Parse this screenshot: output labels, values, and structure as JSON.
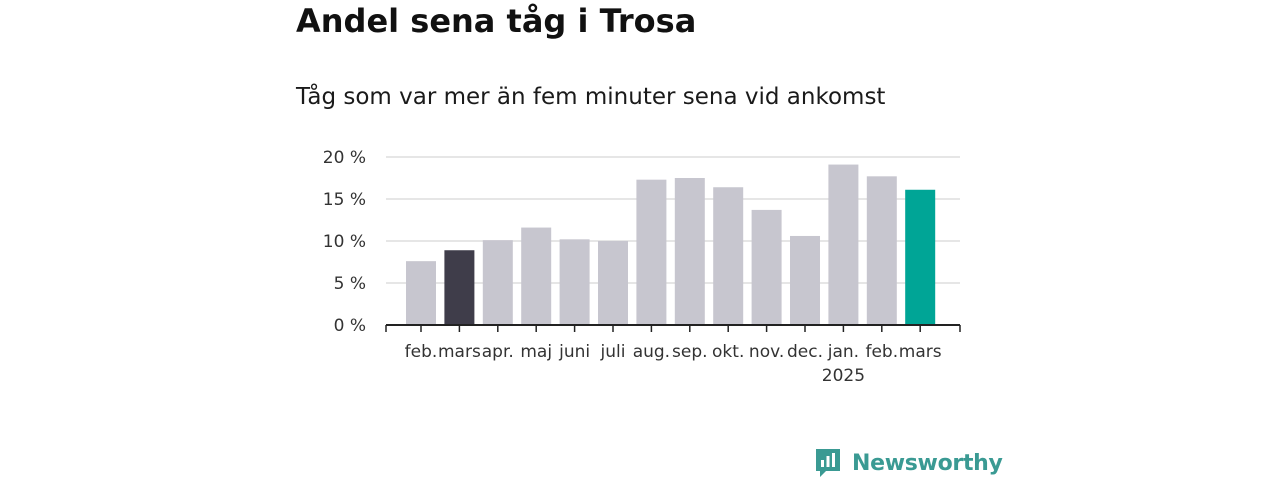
{
  "header": {
    "title": "Andel sena tåg i Trosa",
    "subtitle": "Tåg som var mer än fem minuter sena vid ankomst"
  },
  "brand": {
    "name": "Newsworthy",
    "color": "#3a9a93"
  },
  "colors": {
    "default_bar": "#c7c6cf",
    "previous_year_bar": "#3f3d4a",
    "latest_bar": "#00a596",
    "gridline": "#dddddd",
    "axis": "#222222"
  },
  "chart_data": {
    "type": "bar",
    "title": "Andel sena tåg i Trosa",
    "subtitle": "Tåg som var mer än fem minuter sena vid ankomst",
    "xlabel": "",
    "ylabel": "",
    "categories": [
      "feb.",
      "mars",
      "apr.",
      "maj",
      "juni",
      "juli",
      "aug.",
      "sep.",
      "okt.",
      "nov.",
      "dec.",
      "jan.",
      "feb.",
      "mars"
    ],
    "year_labels": [
      "",
      "",
      "",
      "",
      "",
      "",
      "",
      "",
      "",
      "",
      "",
      "2025",
      "",
      ""
    ],
    "values": [
      7.6,
      8.9,
      10.1,
      11.6,
      10.2,
      10.0,
      17.3,
      17.5,
      16.4,
      13.7,
      10.6,
      19.1,
      17.7,
      16.1
    ],
    "highlight": {
      "1": "previous_year_bar",
      "13": "latest_bar"
    },
    "yticks": [
      0,
      5,
      10,
      15,
      20
    ],
    "ytick_labels": [
      "0 %",
      "5 %",
      "10 %",
      "15 %",
      "20 %"
    ],
    "ylim": [
      0,
      20
    ],
    "grid": true,
    "legend": "none"
  }
}
